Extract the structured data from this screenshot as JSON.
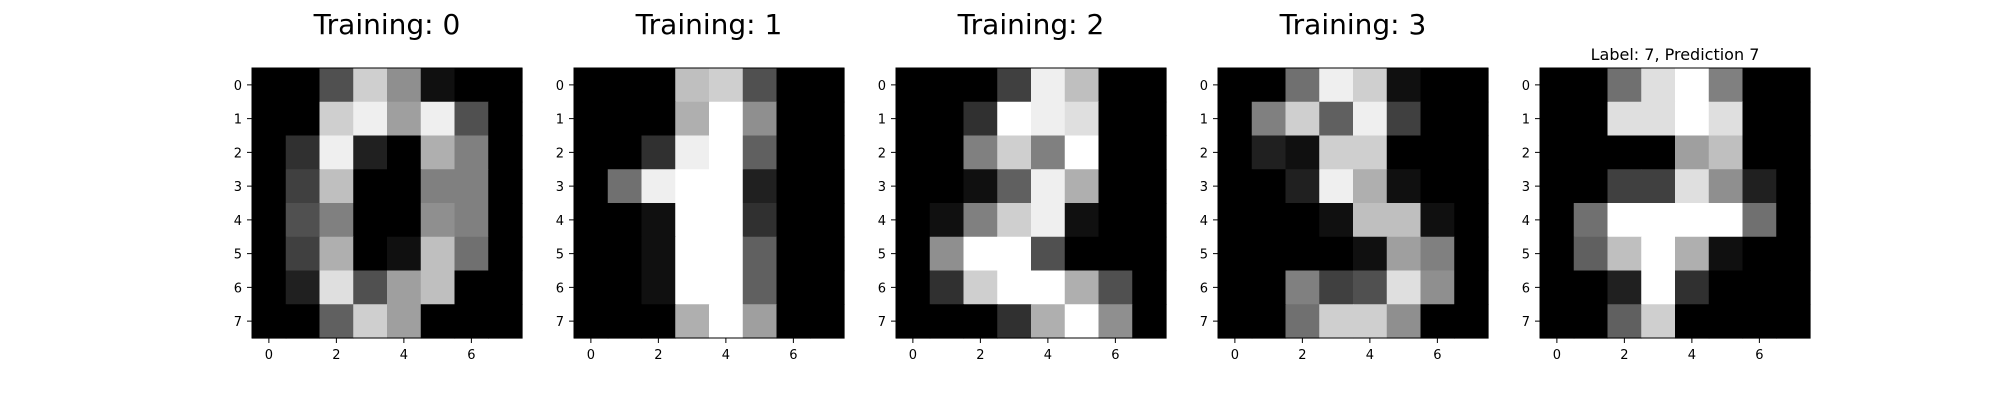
{
  "chart_data": [
    {
      "type": "heatmap",
      "title": "Training: 0",
      "colormap": "gray_r",
      "vmin": 0,
      "vmax": 16,
      "xticks": [
        "0",
        "2",
        "4",
        "6"
      ],
      "yticks": [
        "0",
        "1",
        "2",
        "3",
        "4",
        "5",
        "6",
        "7"
      ],
      "values": [
        [
          0,
          0,
          5,
          13,
          9,
          1,
          0,
          0
        ],
        [
          0,
          0,
          13,
          15,
          10,
          15,
          5,
          0
        ],
        [
          0,
          3,
          15,
          2,
          0,
          11,
          8,
          0
        ],
        [
          0,
          4,
          12,
          0,
          0,
          8,
          8,
          0
        ],
        [
          0,
          5,
          8,
          0,
          0,
          9,
          8,
          0
        ],
        [
          0,
          4,
          11,
          0,
          1,
          12,
          7,
          0
        ],
        [
          0,
          2,
          14,
          5,
          10,
          12,
          0,
          0
        ],
        [
          0,
          0,
          6,
          13,
          10,
          0,
          0,
          0
        ]
      ]
    },
    {
      "type": "heatmap",
      "title": "Training: 1",
      "colormap": "gray_r",
      "vmin": 0,
      "vmax": 16,
      "xticks": [
        "0",
        "2",
        "4",
        "6"
      ],
      "yticks": [
        "0",
        "1",
        "2",
        "3",
        "4",
        "5",
        "6",
        "7"
      ],
      "values": [
        [
          0,
          0,
          0,
          12,
          13,
          5,
          0,
          0
        ],
        [
          0,
          0,
          0,
          11,
          16,
          9,
          0,
          0
        ],
        [
          0,
          0,
          3,
          15,
          16,
          6,
          0,
          0
        ],
        [
          0,
          7,
          15,
          16,
          16,
          2,
          0,
          0
        ],
        [
          0,
          0,
          1,
          16,
          16,
          3,
          0,
          0
        ],
        [
          0,
          0,
          1,
          16,
          16,
          6,
          0,
          0
        ],
        [
          0,
          0,
          1,
          16,
          16,
          6,
          0,
          0
        ],
        [
          0,
          0,
          0,
          11,
          16,
          10,
          0,
          0
        ]
      ]
    },
    {
      "type": "heatmap",
      "title": "Training: 2",
      "colormap": "gray_r",
      "vmin": 0,
      "vmax": 16,
      "xticks": [
        "0",
        "2",
        "4",
        "6"
      ],
      "yticks": [
        "0",
        "1",
        "2",
        "3",
        "4",
        "5",
        "6",
        "7"
      ],
      "values": [
        [
          0,
          0,
          0,
          4,
          15,
          12,
          0,
          0
        ],
        [
          0,
          0,
          3,
          16,
          15,
          14,
          0,
          0
        ],
        [
          0,
          0,
          8,
          13,
          8,
          16,
          0,
          0
        ],
        [
          0,
          0,
          1,
          6,
          15,
          11,
          0,
          0
        ],
        [
          0,
          1,
          8,
          13,
          15,
          1,
          0,
          0
        ],
        [
          0,
          9,
          16,
          16,
          5,
          0,
          0,
          0
        ],
        [
          0,
          3,
          13,
          16,
          16,
          11,
          5,
          0
        ],
        [
          0,
          0,
          0,
          3,
          11,
          16,
          9,
          0
        ]
      ]
    },
    {
      "type": "heatmap",
      "title": "Training: 3",
      "colormap": "gray_r",
      "vmin": 0,
      "vmax": 16,
      "xticks": [
        "0",
        "2",
        "4",
        "6"
      ],
      "yticks": [
        "0",
        "1",
        "2",
        "3",
        "4",
        "5",
        "6",
        "7"
      ],
      "values": [
        [
          0,
          0,
          7,
          15,
          13,
          1,
          0,
          0
        ],
        [
          0,
          8,
          13,
          6,
          15,
          4,
          0,
          0
        ],
        [
          0,
          2,
          1,
          13,
          13,
          0,
          0,
          0
        ],
        [
          0,
          0,
          2,
          15,
          11,
          1,
          0,
          0
        ],
        [
          0,
          0,
          0,
          1,
          12,
          12,
          1,
          0
        ],
        [
          0,
          0,
          0,
          0,
          1,
          10,
          8,
          0
        ],
        [
          0,
          0,
          8,
          4,
          5,
          14,
          9,
          0
        ],
        [
          0,
          0,
          7,
          13,
          13,
          9,
          0,
          0
        ]
      ]
    },
    {
      "type": "heatmap",
      "title": "Label: 7, Prediction 7",
      "colormap": "gray_r",
      "vmin": 0,
      "vmax": 16,
      "xticks": [
        "0",
        "2",
        "4",
        "6"
      ],
      "yticks": [
        "0",
        "1",
        "2",
        "3",
        "4",
        "5",
        "6",
        "7"
      ],
      "values": [
        [
          0,
          0,
          7,
          14,
          16,
          8,
          0,
          0
        ],
        [
          0,
          0,
          14,
          14,
          16,
          14,
          0,
          0
        ],
        [
          0,
          0,
          0,
          0,
          10,
          12,
          0,
          0
        ],
        [
          0,
          0,
          4,
          4,
          14,
          9,
          2,
          0
        ],
        [
          0,
          7,
          16,
          16,
          16,
          16,
          7,
          0
        ],
        [
          0,
          6,
          12,
          16,
          11,
          1,
          0,
          0
        ],
        [
          0,
          0,
          2,
          16,
          3,
          0,
          0,
          0
        ],
        [
          0,
          0,
          6,
          13,
          0,
          0,
          0,
          0
        ]
      ]
    }
  ]
}
